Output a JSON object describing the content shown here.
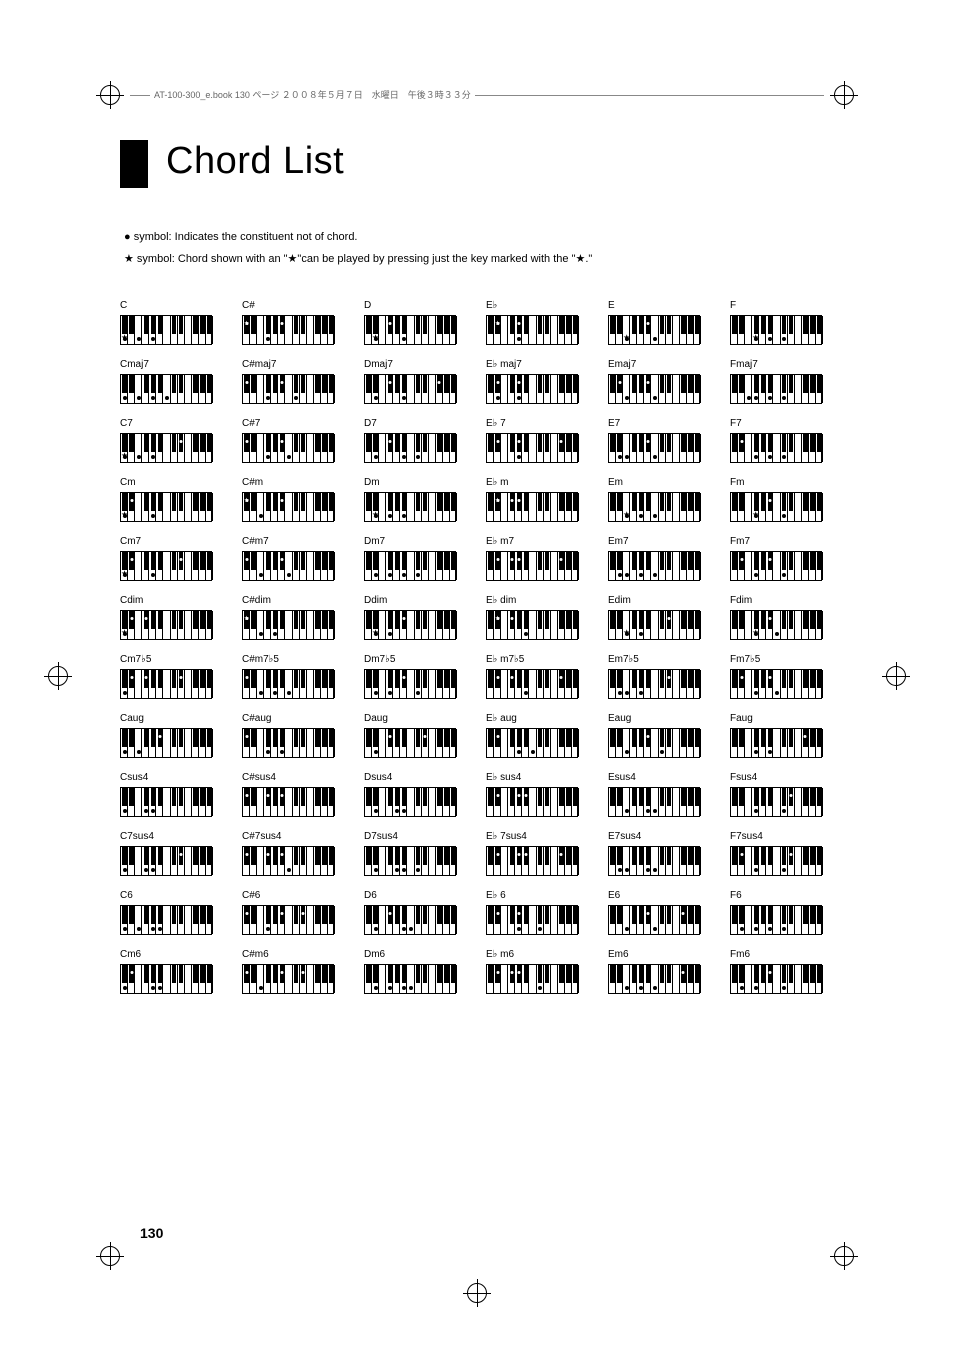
{
  "header_text": "AT-100-300_e.book  130 ページ  ２００８年５月７日　水曜日　午後３時３３分",
  "title": "Chord List",
  "legend": {
    "dot_text": "● symbol: Indicates the constituent not of chord.",
    "star_text": "★ symbol: Chord shown with an \"★\"can be played by pressing just the key marked with the \"★.\""
  },
  "page_number": "130",
  "keyboard": {
    "white_count": 13,
    "black_positions": [
      1,
      2,
      4,
      5,
      6,
      8,
      9,
      11,
      12,
      13
    ]
  },
  "rows": [
    {
      "labels": [
        "C",
        "C#",
        "D",
        "E♭",
        "E",
        "F"
      ]
    },
    {
      "labels": [
        "Cmaj7",
        "C#maj7",
        "Dmaj7",
        "E♭ maj7",
        "Emaj7",
        "Fmaj7"
      ]
    },
    {
      "labels": [
        "C7",
        "C#7",
        "D7",
        "E♭ 7",
        "E7",
        "F7"
      ]
    },
    {
      "labels": [
        "Cm",
        "C#m",
        "Dm",
        "E♭ m",
        "Em",
        "Fm"
      ]
    },
    {
      "labels": [
        "Cm7",
        "C#m7",
        "Dm7",
        "E♭ m7",
        "Em7",
        "Fm7"
      ]
    },
    {
      "labels": [
        "Cdim",
        "C#dim",
        "Ddim",
        "E♭ dim",
        "Edim",
        "Fdim"
      ]
    },
    {
      "labels": [
        "Cm7♭5",
        "C#m7♭5",
        "Dm7♭5",
        "E♭ m7♭5",
        "Em7♭5",
        "Fm7♭5"
      ]
    },
    {
      "labels": [
        "Caug",
        "C#aug",
        "Daug",
        "E♭ aug",
        "Eaug",
        "Faug"
      ]
    },
    {
      "labels": [
        "Csus4",
        "C#sus4",
        "Dsus4",
        "E♭ sus4",
        "Esus4",
        "Fsus4"
      ]
    },
    {
      "labels": [
        "C7sus4",
        "C#7sus4",
        "D7sus4",
        "E♭ 7sus4",
        "E7sus4",
        "F7sus4"
      ]
    },
    {
      "labels": [
        "C6",
        "C#6",
        "D6",
        "E♭ 6",
        "E6",
        "F6"
      ]
    },
    {
      "labels": [
        "Cm6",
        "C#m6",
        "Dm6",
        "E♭ m6",
        "Em6",
        "Fm6"
      ]
    }
  ],
  "chord_notes": {
    "0_0": {
      "w": [
        0,
        2,
        4
      ],
      "b": [],
      "ws": [
        0
      ],
      "bs": []
    },
    "0_1": {
      "w": [
        3
      ],
      "b": [
        0,
        4
      ],
      "ws": [],
      "bs": [
        0
      ]
    },
    "0_2": {
      "w": [
        1,
        5
      ],
      "b": [
        2
      ],
      "ws": [
        1
      ],
      "bs": []
    },
    "0_3": {
      "w": [
        4
      ],
      "b": [
        1,
        3
      ],
      "ws": [],
      "bs": [
        1
      ]
    },
    "0_4": {
      "w": [
        2,
        6
      ],
      "b": [
        4
      ],
      "ws": [
        2
      ],
      "bs": []
    },
    "0_5": {
      "w": [
        3,
        5,
        7
      ],
      "b": [],
      "ws": [
        3
      ],
      "bs": []
    },
    "1_0": {
      "w": [
        0,
        2,
        4,
        6
      ],
      "b": [],
      "ws": [],
      "bs": []
    },
    "1_1": {
      "w": [
        3,
        7
      ],
      "b": [
        0,
        4
      ],
      "ws": [],
      "bs": []
    },
    "1_2": {
      "w": [
        1,
        5
      ],
      "b": [
        2,
        7
      ],
      "ws": [],
      "bs": []
    },
    "1_3": {
      "w": [
        1,
        4
      ],
      "b": [
        1,
        3
      ],
      "ws": [],
      "bs": []
    },
    "1_4": {
      "w": [
        2,
        6
      ],
      "b": [
        1,
        4
      ],
      "ws": [],
      "bs": []
    },
    "1_5": {
      "w": [
        2,
        3,
        5,
        7
      ],
      "b": [],
      "ws": [],
      "bs": []
    },
    "2_0": {
      "w": [
        0,
        2,
        4
      ],
      "b": [
        6
      ],
      "ws": [
        0
      ],
      "bs": []
    },
    "2_1": {
      "w": [
        3,
        6
      ],
      "b": [
        0,
        4
      ],
      "ws": [],
      "bs": []
    },
    "2_2": {
      "w": [
        1,
        5,
        7
      ],
      "b": [
        2
      ],
      "ws": [],
      "bs": []
    },
    "2_3": {
      "w": [
        4
      ],
      "b": [
        1,
        3,
        7
      ],
      "ws": [],
      "bs": []
    },
    "2_4": {
      "w": [
        1,
        2,
        6
      ],
      "b": [
        4
      ],
      "ws": [],
      "bs": []
    },
    "2_5": {
      "w": [
        3,
        5,
        7
      ],
      "b": [
        1
      ],
      "ws": [],
      "bs": []
    },
    "3_0": {
      "w": [
        0,
        4
      ],
      "b": [
        1
      ],
      "ws": [
        0
      ],
      "bs": []
    },
    "3_1": {
      "w": [
        2
      ],
      "b": [
        0,
        4
      ],
      "ws": [],
      "bs": [
        0
      ]
    },
    "3_2": {
      "w": [
        1,
        3,
        5
      ],
      "b": [],
      "ws": [
        1
      ],
      "bs": []
    },
    "3_3": {
      "w": [],
      "b": [
        1,
        2,
        3
      ],
      "ws": [],
      "bs": [
        1
      ]
    },
    "3_4": {
      "w": [
        2,
        4,
        6
      ],
      "b": [],
      "ws": [
        2
      ],
      "bs": []
    },
    "3_5": {
      "w": [
        3,
        7
      ],
      "b": [
        4
      ],
      "ws": [
        3
      ],
      "bs": []
    },
    "4_0": {
      "w": [
        0,
        4
      ],
      "b": [
        1,
        6
      ],
      "ws": [
        0
      ],
      "bs": []
    },
    "4_1": {
      "w": [
        2,
        6
      ],
      "b": [
        0,
        4
      ],
      "ws": [],
      "bs": []
    },
    "4_2": {
      "w": [
        1,
        3,
        5,
        7
      ],
      "b": [],
      "ws": [],
      "bs": []
    },
    "4_3": {
      "w": [],
      "b": [
        1,
        2,
        3,
        7
      ],
      "ws": [],
      "bs": []
    },
    "4_4": {
      "w": [
        1,
        2,
        4,
        6
      ],
      "b": [],
      "ws": [],
      "bs": []
    },
    "4_5": {
      "w": [
        3,
        7
      ],
      "b": [
        1,
        4
      ],
      "ws": [],
      "bs": []
    },
    "5_0": {
      "w": [
        0
      ],
      "b": [
        1,
        2
      ],
      "ws": [
        0
      ],
      "bs": []
    },
    "5_1": {
      "w": [
        2,
        4
      ],
      "b": [
        0
      ],
      "ws": [],
      "bs": [
        0
      ]
    },
    "5_2": {
      "w": [
        1,
        3
      ],
      "b": [
        4
      ],
      "ws": [
        1
      ],
      "bs": []
    },
    "5_3": {
      "w": [
        5
      ],
      "b": [
        1,
        2
      ],
      "ws": [],
      "bs": [
        1
      ]
    },
    "5_4": {
      "w": [
        2,
        4
      ],
      "b": [
        6
      ],
      "ws": [
        2
      ],
      "bs": []
    },
    "5_5": {
      "w": [
        3,
        6
      ],
      "b": [
        4
      ],
      "ws": [
        3
      ],
      "bs": []
    },
    "6_0": {
      "w": [
        0
      ],
      "b": [
        1,
        2,
        6
      ],
      "ws": [],
      "bs": []
    },
    "6_1": {
      "w": [
        2,
        4,
        6
      ],
      "b": [
        0
      ],
      "ws": [],
      "bs": []
    },
    "6_2": {
      "w": [
        1,
        3,
        7
      ],
      "b": [
        4
      ],
      "ws": [],
      "bs": []
    },
    "6_3": {
      "w": [
        5
      ],
      "b": [
        1,
        2,
        7
      ],
      "ws": [],
      "bs": []
    },
    "6_4": {
      "w": [
        1,
        2,
        4
      ],
      "b": [
        6
      ],
      "ws": [],
      "bs": []
    },
    "6_5": {
      "w": [
        3,
        6
      ],
      "b": [
        1,
        4
      ],
      "ws": [],
      "bs": []
    },
    "7_0": {
      "w": [
        0,
        2
      ],
      "b": [
        4
      ],
      "ws": [],
      "bs": []
    },
    "7_1": {
      "w": [
        3,
        5
      ],
      "b": [
        0
      ],
      "ws": [],
      "bs": []
    },
    "7_2": {
      "w": [
        1
      ],
      "b": [
        2,
        6
      ],
      "ws": [],
      "bs": []
    },
    "7_3": {
      "w": [
        4,
        6
      ],
      "b": [
        1
      ],
      "ws": [],
      "bs": []
    },
    "7_4": {
      "w": [
        2,
        7
      ],
      "b": [
        4
      ],
      "ws": [],
      "bs": []
    },
    "7_5": {
      "w": [
        3,
        5
      ],
      "b": [
        7
      ],
      "ws": [],
      "bs": []
    },
    "8_0": {
      "w": [
        0,
        3,
        4
      ],
      "b": [],
      "ws": [],
      "bs": []
    },
    "8_1": {
      "w": [],
      "b": [
        0,
        2,
        4
      ],
      "ws": [],
      "bs": []
    },
    "8_2": {
      "w": [
        1,
        4,
        5
      ],
      "b": [],
      "ws": [],
      "bs": []
    },
    "8_3": {
      "w": [],
      "b": [
        1,
        4,
        3
      ],
      "ws": [],
      "bs": []
    },
    "8_4": {
      "w": [
        2,
        5,
        6
      ],
      "b": [],
      "ws": [],
      "bs": []
    },
    "8_5": {
      "w": [
        3,
        7
      ],
      "b": [
        6
      ],
      "ws": [],
      "bs": []
    },
    "9_0": {
      "w": [
        0,
        3,
        4
      ],
      "b": [
        6
      ],
      "ws": [],
      "bs": []
    },
    "9_1": {
      "w": [
        6
      ],
      "b": [
        0,
        2,
        4
      ],
      "ws": [],
      "bs": []
    },
    "9_2": {
      "w": [
        1,
        4,
        5,
        7
      ],
      "b": [],
      "ws": [],
      "bs": []
    },
    "9_3": {
      "w": [],
      "b": [
        1,
        4,
        3,
        7
      ],
      "ws": [],
      "bs": []
    },
    "9_4": {
      "w": [
        1,
        2,
        5,
        6
      ],
      "b": [],
      "ws": [],
      "bs": []
    },
    "9_5": {
      "w": [
        3,
        7
      ],
      "b": [
        1,
        6
      ],
      "ws": [],
      "bs": []
    },
    "10_0": {
      "w": [
        0,
        2,
        4,
        5
      ],
      "b": [],
      "ws": [],
      "bs": []
    },
    "10_1": {
      "w": [
        3
      ],
      "b": [
        0,
        4,
        6
      ],
      "ws": [],
      "bs": []
    },
    "10_2": {
      "w": [
        1,
        5,
        6
      ],
      "b": [
        2
      ],
      "ws": [],
      "bs": []
    },
    "10_3": {
      "w": [
        4,
        7
      ],
      "b": [
        1,
        3
      ],
      "ws": [],
      "bs": []
    },
    "10_4": {
      "w": [
        2,
        6
      ],
      "b": [
        4,
        7
      ],
      "ws": [],
      "bs": []
    },
    "10_5": {
      "w": [
        1,
        3,
        5,
        7
      ],
      "b": [],
      "ws": [],
      "bs": []
    },
    "11_0": {
      "w": [
        0,
        4,
        5
      ],
      "b": [
        1
      ],
      "ws": [],
      "bs": []
    },
    "11_1": {
      "w": [
        2
      ],
      "b": [
        0,
        4,
        6
      ],
      "ws": [],
      "bs": []
    },
    "11_2": {
      "w": [
        1,
        3,
        5,
        6
      ],
      "b": [],
      "ws": [],
      "bs": []
    },
    "11_3": {
      "w": [
        7
      ],
      "b": [
        1,
        2,
        3
      ],
      "ws": [],
      "bs": []
    },
    "11_4": {
      "w": [
        2,
        4,
        6
      ],
      "b": [
        7
      ],
      "ws": [],
      "bs": []
    },
    "11_5": {
      "w": [
        1,
        3,
        7
      ],
      "b": [
        4
      ],
      "ws": [],
      "bs": []
    }
  }
}
